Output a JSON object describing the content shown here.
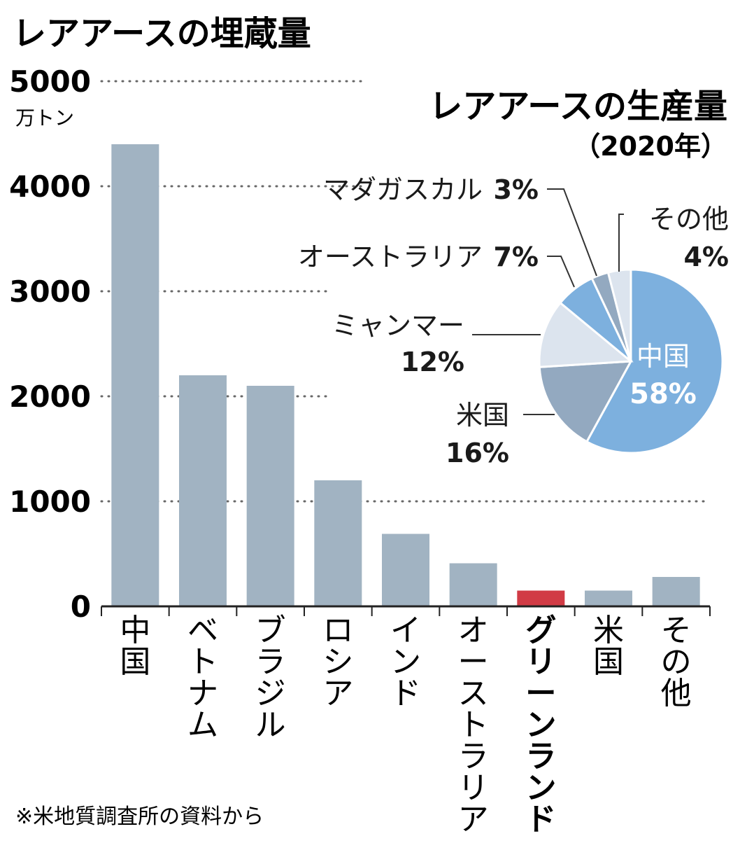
{
  "chart_data": [
    {
      "type": "bar",
      "title": "レアアースの埋蔵量",
      "ylabel": "万トン",
      "ylim": [
        0,
        5000
      ],
      "yticks": [
        "0",
        "1000",
        "2000",
        "3000",
        "4000",
        "5000"
      ],
      "ytick_values": [
        0,
        1000,
        2000,
        3000,
        4000,
        5000
      ],
      "grid": "dotted",
      "categories": [
        "中国",
        "ベトナム",
        "ブラジル",
        "ロシア",
        "インド",
        "オーストラリア",
        "グリーンランド",
        "米国",
        "その他"
      ],
      "values": [
        4400,
        2200,
        2100,
        1200,
        690,
        410,
        150,
        150,
        280
      ],
      "highlight_category": "グリーンランド",
      "colors": {
        "bar": "#a1b3c2",
        "highlight": "#d13b45",
        "axis": "#222222",
        "grid": "#666666"
      }
    },
    {
      "type": "pie",
      "title": "レアアースの生産量",
      "subtitle": "（2020年）",
      "slices": [
        {
          "label": "中国",
          "value": 58,
          "value_label": "58%",
          "color": "#7db0de"
        },
        {
          "label": "米国",
          "value": 16,
          "value_label": "16%",
          "color": "#93a9c0"
        },
        {
          "label": "ミャンマー",
          "value": 12,
          "value_label": "12%",
          "color": "#dce4ee"
        },
        {
          "label": "オーストラリア",
          "value": 7,
          "value_label": "7%",
          "color": "#7db0de"
        },
        {
          "label": "マダガスカル",
          "value": 3,
          "value_label": "3%",
          "color": "#93a9c0"
        },
        {
          "label": "その他",
          "value": 4,
          "value_label": "4%",
          "color": "#dce4ee"
        }
      ]
    }
  ],
  "footnote": "※米地質調査所の資料から"
}
